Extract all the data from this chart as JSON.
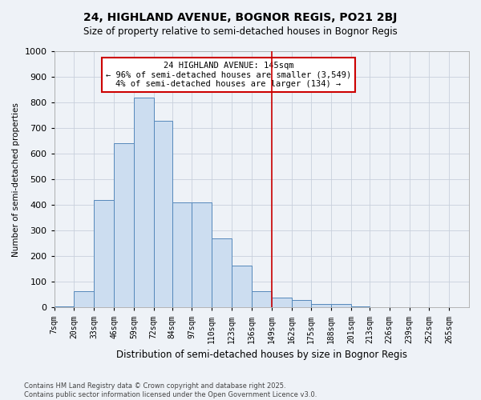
{
  "title": "24, HIGHLAND AVENUE, BOGNOR REGIS, PO21 2BJ",
  "subtitle": "Size of property relative to semi-detached houses in Bognor Regis",
  "xlabel": "Distribution of semi-detached houses by size in Bognor Regis",
  "ylabel": "Number of semi-detached properties",
  "bar_color": "#ccddf0",
  "bar_edge_color": "#5588bb",
  "annotation_line_color": "#cc0000",
  "annotation_box_color": "#cc0000",
  "annotation_line1": "24 HIGHLAND AVENUE: 145sqm",
  "annotation_line2": "← 96% of semi-detached houses are smaller (3,549)",
  "annotation_line3": "4% of semi-detached houses are larger (134) →",
  "property_size_bin": 11,
  "categories": [
    "7sqm",
    "20sqm",
    "33sqm",
    "46sqm",
    "59sqm",
    "72sqm",
    "84sqm",
    "97sqm",
    "110sqm",
    "123sqm",
    "136sqm",
    "149sqm",
    "162sqm",
    "175sqm",
    "188sqm",
    "201sqm",
    "213sqm",
    "226sqm",
    "239sqm",
    "252sqm",
    "265sqm"
  ],
  "bin_edges": [
    7,
    20,
    33,
    46,
    59,
    72,
    84,
    97,
    110,
    123,
    136,
    149,
    162,
    175,
    188,
    201,
    213,
    226,
    239,
    252,
    265,
    278
  ],
  "values": [
    3,
    65,
    420,
    640,
    820,
    730,
    410,
    410,
    270,
    165,
    65,
    40,
    30,
    15,
    15,
    5,
    2,
    0,
    0,
    0,
    2
  ],
  "ylim": [
    0,
    1000
  ],
  "yticks": [
    0,
    100,
    200,
    300,
    400,
    500,
    600,
    700,
    800,
    900,
    1000
  ],
  "footer_text": "Contains HM Land Registry data © Crown copyright and database right 2025.\nContains public sector information licensed under the Open Government Licence v3.0.",
  "background_color": "#eef2f7"
}
